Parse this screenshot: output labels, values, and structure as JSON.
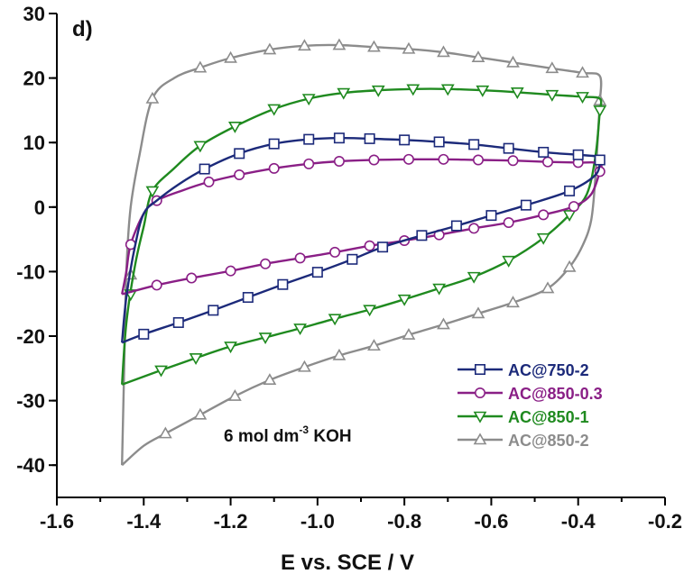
{
  "chart_data": {
    "type": "line",
    "panel_label": "d)",
    "xlabel": "E vs. SCE / V",
    "ylabel": "",
    "xlim": [
      -1.6,
      -0.2
    ],
    "ylim": [
      -45,
      30
    ],
    "xticks": [
      -1.6,
      -1.4,
      -1.2,
      -1.0,
      -0.8,
      -0.6,
      -0.4,
      -0.2
    ],
    "xtick_labels": [
      "-1.6",
      "-1.4",
      "-1.2",
      "-1.0",
      "-0.8",
      "-0.6",
      "-0.4",
      "-0.2"
    ],
    "yticks": [
      -40,
      -30,
      -20,
      -10,
      0,
      10,
      20,
      30
    ],
    "ytick_labels": [
      "-40",
      "-30",
      "-20",
      "-10",
      "0",
      "10",
      "20",
      "30"
    ],
    "grid": false,
    "legend_position": "bottom-right",
    "annotation": {
      "text": "6 mol dm",
      "superscript": "-3",
      "suffix": " KOH"
    },
    "series": [
      {
        "name": "AC@750-2",
        "color": "#1c2a7a",
        "marker": "square",
        "upper": [
          [
            -1.45,
            -21
          ],
          [
            -1.44,
            -14
          ],
          [
            -1.42,
            -6
          ],
          [
            -1.4,
            -1
          ],
          [
            -1.37,
            1
          ],
          [
            -1.32,
            3.5
          ],
          [
            -1.26,
            5.9
          ],
          [
            -1.18,
            8.3
          ],
          [
            -1.1,
            9.8
          ],
          [
            -1.02,
            10.5
          ],
          [
            -0.95,
            10.7
          ],
          [
            -0.88,
            10.6
          ],
          [
            -0.8,
            10.4
          ],
          [
            -0.72,
            10.1
          ],
          [
            -0.64,
            9.7
          ],
          [
            -0.56,
            9.1
          ],
          [
            -0.48,
            8.5
          ],
          [
            -0.4,
            8.1
          ],
          [
            -0.35,
            7.8
          ],
          [
            -0.35,
            7.3
          ]
        ],
        "lower": [
          [
            -0.35,
            7.3
          ],
          [
            -0.36,
            5
          ],
          [
            -0.42,
            2.5
          ],
          [
            -0.52,
            0.3
          ],
          [
            -0.6,
            -1.3
          ],
          [
            -0.68,
            -2.9
          ],
          [
            -0.76,
            -4.4
          ],
          [
            -0.85,
            -6.2
          ],
          [
            -0.92,
            -8.1
          ],
          [
            -1.0,
            -10.1
          ],
          [
            -1.08,
            -12.0
          ],
          [
            -1.16,
            -14.0
          ],
          [
            -1.24,
            -16.0
          ],
          [
            -1.32,
            -17.9
          ],
          [
            -1.4,
            -19.7
          ],
          [
            -1.45,
            -21
          ]
        ],
        "marker_points": [
          [
            -1.26,
            5.9
          ],
          [
            -1.18,
            8.3
          ],
          [
            -1.1,
            9.8
          ],
          [
            -1.02,
            10.5
          ],
          [
            -0.95,
            10.7
          ],
          [
            -0.88,
            10.6
          ],
          [
            -0.8,
            10.4
          ],
          [
            -0.72,
            10.1
          ],
          [
            -0.64,
            9.7
          ],
          [
            -0.56,
            9.1
          ],
          [
            -0.48,
            8.5
          ],
          [
            -0.4,
            8.1
          ],
          [
            -0.35,
            7.3
          ],
          [
            -0.42,
            2.5
          ],
          [
            -0.52,
            0.3
          ],
          [
            -0.6,
            -1.3
          ],
          [
            -0.68,
            -2.9
          ],
          [
            -0.76,
            -4.4
          ],
          [
            -0.85,
            -6.2
          ],
          [
            -0.92,
            -8.1
          ],
          [
            -1.0,
            -10.1
          ],
          [
            -1.08,
            -12.0
          ],
          [
            -1.16,
            -14.0
          ],
          [
            -1.24,
            -16.0
          ],
          [
            -1.32,
            -17.9
          ],
          [
            -1.4,
            -19.7
          ]
        ]
      },
      {
        "name": "AC@850-0.3",
        "color": "#8a1f86",
        "marker": "circle",
        "upper": [
          [
            -1.45,
            -13.5
          ],
          [
            -1.44,
            -10
          ],
          [
            -1.43,
            -5.8
          ],
          [
            -1.4,
            -1
          ],
          [
            -1.37,
            1
          ],
          [
            -1.31,
            2.6
          ],
          [
            -1.25,
            3.9
          ],
          [
            -1.18,
            5.0
          ],
          [
            -1.1,
            6.0
          ],
          [
            -1.02,
            6.7
          ],
          [
            -0.95,
            7.1
          ],
          [
            -0.87,
            7.3
          ],
          [
            -0.79,
            7.4
          ],
          [
            -0.71,
            7.4
          ],
          [
            -0.63,
            7.3
          ],
          [
            -0.55,
            7.2
          ],
          [
            -0.47,
            7.0
          ],
          [
            -0.4,
            6.9
          ],
          [
            -0.35,
            6.8
          ],
          [
            -0.35,
            5.5
          ]
        ],
        "lower": [
          [
            -0.35,
            5.5
          ],
          [
            -0.37,
            2
          ],
          [
            -0.41,
            0.1
          ],
          [
            -0.48,
            -1.2
          ],
          [
            -0.56,
            -2.4
          ],
          [
            -0.64,
            -3.3
          ],
          [
            -0.72,
            -4.3
          ],
          [
            -0.8,
            -5.2
          ],
          [
            -0.88,
            -6.0
          ],
          [
            -0.96,
            -7.0
          ],
          [
            -1.04,
            -7.9
          ],
          [
            -1.12,
            -8.8
          ],
          [
            -1.2,
            -9.9
          ],
          [
            -1.29,
            -11.0
          ],
          [
            -1.37,
            -12.1
          ],
          [
            -1.45,
            -13.5
          ]
        ],
        "marker_points": [
          [
            -1.43,
            -5.8
          ],
          [
            -1.37,
            1
          ],
          [
            -1.25,
            3.9
          ],
          [
            -1.18,
            5.0
          ],
          [
            -1.1,
            6.0
          ],
          [
            -1.02,
            6.7
          ],
          [
            -0.95,
            7.1
          ],
          [
            -0.87,
            7.3
          ],
          [
            -0.79,
            7.4
          ],
          [
            -0.71,
            7.4
          ],
          [
            -0.63,
            7.3
          ],
          [
            -0.55,
            7.2
          ],
          [
            -0.47,
            7.0
          ],
          [
            -0.4,
            6.9
          ],
          [
            -0.35,
            5.5
          ],
          [
            -0.41,
            0.1
          ],
          [
            -0.48,
            -1.2
          ],
          [
            -0.56,
            -2.4
          ],
          [
            -0.64,
            -3.3
          ],
          [
            -0.72,
            -4.3
          ],
          [
            -0.8,
            -5.2
          ],
          [
            -0.88,
            -6.0
          ],
          [
            -0.96,
            -7.0
          ],
          [
            -1.04,
            -7.9
          ],
          [
            -1.12,
            -8.8
          ],
          [
            -1.2,
            -9.9
          ],
          [
            -1.29,
            -11.0
          ],
          [
            -1.37,
            -12.1
          ]
        ]
      },
      {
        "name": "AC@850-1",
        "color": "#1f8a1f",
        "marker": "triangle-down",
        "upper": [
          [
            -1.45,
            -27.5
          ],
          [
            -1.44,
            -18
          ],
          [
            -1.42,
            -9
          ],
          [
            -1.4,
            -3
          ],
          [
            -1.38,
            2.5
          ],
          [
            -1.33,
            6
          ],
          [
            -1.27,
            9.5
          ],
          [
            -1.19,
            12.5
          ],
          [
            -1.1,
            15.2
          ],
          [
            -1.02,
            16.8
          ],
          [
            -0.94,
            17.7
          ],
          [
            -0.86,
            18.1
          ],
          [
            -0.78,
            18.3
          ],
          [
            -0.7,
            18.3
          ],
          [
            -0.62,
            18.1
          ],
          [
            -0.54,
            17.8
          ],
          [
            -0.46,
            17.4
          ],
          [
            -0.39,
            17.1
          ],
          [
            -0.35,
            16.8
          ],
          [
            -0.35,
            15
          ]
        ],
        "lower": [
          [
            -0.35,
            15
          ],
          [
            -0.36,
            8
          ],
          [
            -0.38,
            2
          ],
          [
            -0.42,
            -1.2
          ],
          [
            -0.48,
            -4.8
          ],
          [
            -0.56,
            -8.3
          ],
          [
            -0.64,
            -10.8
          ],
          [
            -0.72,
            -12.6
          ],
          [
            -0.8,
            -14.3
          ],
          [
            -0.88,
            -15.9
          ],
          [
            -0.96,
            -17.3
          ],
          [
            -1.04,
            -18.8
          ],
          [
            -1.12,
            -20.2
          ],
          [
            -1.2,
            -21.6
          ],
          [
            -1.28,
            -23.4
          ],
          [
            -1.36,
            -25.3
          ],
          [
            -1.45,
            -27.5
          ]
        ],
        "marker_points": [
          [
            -1.43,
            -13.5
          ],
          [
            -1.38,
            2.5
          ],
          [
            -1.27,
            9.5
          ],
          [
            -1.19,
            12.5
          ],
          [
            -1.1,
            15.2
          ],
          [
            -1.02,
            16.8
          ],
          [
            -0.94,
            17.7
          ],
          [
            -0.86,
            18.1
          ],
          [
            -0.78,
            18.3
          ],
          [
            -0.7,
            18.3
          ],
          [
            -0.62,
            18.1
          ],
          [
            -0.54,
            17.8
          ],
          [
            -0.46,
            17.4
          ],
          [
            -0.39,
            17.1
          ],
          [
            -0.35,
            15
          ],
          [
            -0.42,
            -1.2
          ],
          [
            -0.48,
            -4.8
          ],
          [
            -0.56,
            -8.3
          ],
          [
            -0.64,
            -10.8
          ],
          [
            -0.72,
            -12.6
          ],
          [
            -0.8,
            -14.3
          ],
          [
            -0.88,
            -15.9
          ],
          [
            -0.96,
            -17.3
          ],
          [
            -1.04,
            -18.8
          ],
          [
            -1.12,
            -20.2
          ],
          [
            -1.2,
            -21.6
          ],
          [
            -1.28,
            -23.4
          ],
          [
            -1.36,
            -25.3
          ]
        ]
      },
      {
        "name": "AC@850-2",
        "color": "#8c8c8c",
        "marker": "triangle-up",
        "upper": [
          [
            -1.45,
            -40
          ],
          [
            -1.445,
            -25
          ],
          [
            -1.44,
            -10
          ],
          [
            -1.43,
            0
          ],
          [
            -1.41,
            8
          ],
          [
            -1.38,
            16.8
          ],
          [
            -1.33,
            20
          ],
          [
            -1.27,
            21.6
          ],
          [
            -1.2,
            23.1
          ],
          [
            -1.11,
            24.4
          ],
          [
            -1.03,
            25.0
          ],
          [
            -0.95,
            25.1
          ],
          [
            -0.87,
            24.8
          ],
          [
            -0.79,
            24.5
          ],
          [
            -0.71,
            24.0
          ],
          [
            -0.63,
            23.2
          ],
          [
            -0.55,
            22.4
          ],
          [
            -0.46,
            21.5
          ],
          [
            -0.39,
            20.8
          ],
          [
            -0.35,
            20.3
          ],
          [
            -0.35,
            16.5
          ]
        ],
        "lower": [
          [
            -0.35,
            16.5
          ],
          [
            -0.36,
            5
          ],
          [
            -0.37,
            -2
          ],
          [
            -0.39,
            -6
          ],
          [
            -0.42,
            -9.3
          ],
          [
            -0.47,
            -12.6
          ],
          [
            -0.55,
            -14.8
          ],
          [
            -0.63,
            -16.5
          ],
          [
            -0.71,
            -18.2
          ],
          [
            -0.79,
            -19.8
          ],
          [
            -0.87,
            -21.5
          ],
          [
            -0.95,
            -23.0
          ],
          [
            -1.03,
            -24.8
          ],
          [
            -1.11,
            -26.8
          ],
          [
            -1.19,
            -29.3
          ],
          [
            -1.27,
            -32.2
          ],
          [
            -1.35,
            -35.1
          ],
          [
            -1.4,
            -37
          ],
          [
            -1.45,
            -40
          ]
        ],
        "marker_points": [
          [
            -1.43,
            -10.5
          ],
          [
            -1.38,
            16.8
          ],
          [
            -1.27,
            21.6
          ],
          [
            -1.2,
            23.1
          ],
          [
            -1.11,
            24.4
          ],
          [
            -1.03,
            25.0
          ],
          [
            -0.95,
            25.1
          ],
          [
            -0.87,
            24.8
          ],
          [
            -0.79,
            24.5
          ],
          [
            -0.71,
            24.0
          ],
          [
            -0.63,
            23.2
          ],
          [
            -0.55,
            22.4
          ],
          [
            -0.46,
            21.5
          ],
          [
            -0.39,
            20.8
          ],
          [
            -0.35,
            16.5
          ],
          [
            -0.42,
            -9.3
          ],
          [
            -0.47,
            -12.6
          ],
          [
            -0.55,
            -14.8
          ],
          [
            -0.63,
            -16.5
          ],
          [
            -0.71,
            -18.2
          ],
          [
            -0.79,
            -19.8
          ],
          [
            -0.87,
            -21.5
          ],
          [
            -0.95,
            -23.0
          ],
          [
            -1.03,
            -24.8
          ],
          [
            -1.11,
            -26.8
          ],
          [
            -1.19,
            -29.3
          ],
          [
            -1.27,
            -32.2
          ],
          [
            -1.35,
            -35.1
          ]
        ]
      }
    ]
  }
}
